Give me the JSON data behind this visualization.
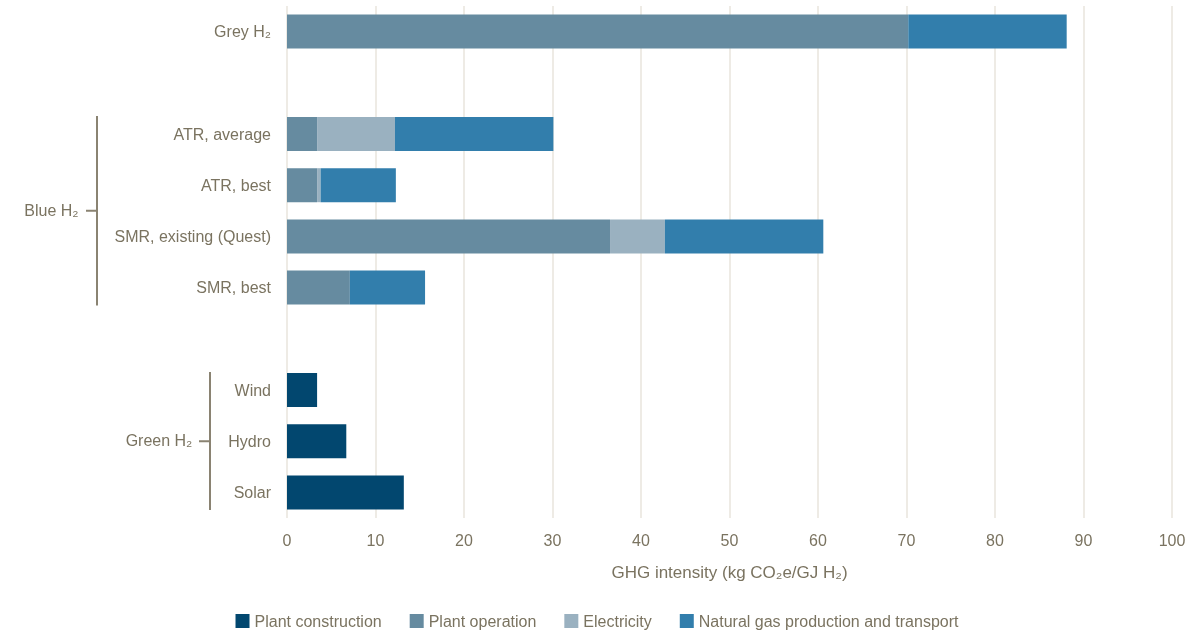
{
  "chart_data": {
    "type": "bar",
    "orientation": "horizontal",
    "stacked": true,
    "categories": [
      "Grey H₂",
      null,
      "ATR, average",
      "ATR, best",
      "SMR, existing (Quest)",
      "SMR, best",
      null,
      "Wind",
      "Hydro",
      "Solar"
    ],
    "series": [
      {
        "name": "Plant construction",
        "color": "#02476f",
        "values": [
          null,
          null,
          null,
          null,
          null,
          null,
          null,
          3.4,
          6.7,
          13.2
        ]
      },
      {
        "name": "Plant operation",
        "color": "#668ba0",
        "values": [
          70.2,
          null,
          3.4,
          3.4,
          36.5,
          7.1,
          null,
          null,
          null,
          null
        ]
      },
      {
        "name": "Electricity",
        "color": "#9ab1c0",
        "values": [
          null,
          null,
          8.8,
          0.4,
          6.2,
          null,
          null,
          null,
          null,
          null
        ]
      },
      {
        "name": "Natural gas production and transport",
        "color": "#327eac",
        "values": [
          17.9,
          null,
          17.9,
          8.5,
          17.9,
          8.5,
          null,
          null,
          null,
          null
        ]
      }
    ],
    "xlabel": "GHG intensity (kg CO₂e/GJ H₂)",
    "xlim": [
      0,
      100
    ],
    "xticks": [
      0,
      10,
      20,
      30,
      40,
      50,
      60,
      70,
      80,
      90,
      100
    ],
    "grid": "x",
    "legend": "bottom",
    "annotations": [
      "Blue H₂",
      "Green H₂"
    ]
  }
}
